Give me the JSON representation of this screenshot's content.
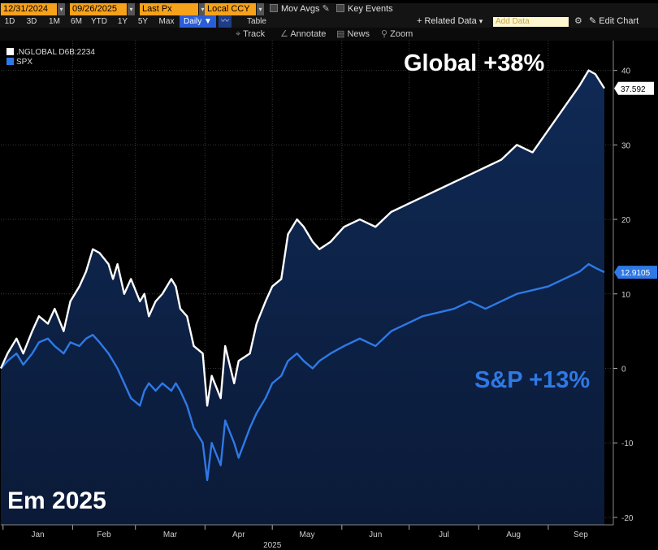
{
  "toolbar": {
    "start_date": "12/31/2024",
    "end_date": "09/26/2025",
    "field": "Last Px",
    "currency": "Local CCY",
    "mov_avgs": "Mov Avgs",
    "key_events": "Key Events",
    "ranges": [
      "1D",
      "3D",
      "1M",
      "6M",
      "YTD",
      "1Y",
      "5Y",
      "Max"
    ],
    "frequency": "Daily",
    "table": "Table",
    "related_data": "Related Data",
    "add_data_placeholder": "Add Data",
    "edit_chart": "Edit Chart",
    "tools": [
      "Track",
      "Annotate",
      "News",
      "Zoom"
    ]
  },
  "legend": [
    {
      "label": ".NGLOBAL D6B:2234",
      "color": "#ffffff"
    },
    {
      "label": "SPX",
      "color": "#2f79e6"
    }
  ],
  "annotations": {
    "global": "Global +38%",
    "sp": "S&P +13%",
    "corner": "Em 2025"
  },
  "chart_data": {
    "type": "line",
    "x_axis": {
      "tick_labels": [
        "Jan",
        "Feb",
        "Mar",
        "Apr",
        "May",
        "Jun",
        "Jul",
        "Aug",
        "Sep"
      ],
      "year_label": "2025"
    },
    "ylim": [
      -21,
      44
    ],
    "y_ticks": [
      -20,
      -10,
      0,
      10,
      20,
      30,
      40
    ],
    "grid": true,
    "series": [
      {
        "name": ".NGLOBAL D6B:2234",
        "color": "#ffffff",
        "last_value_label": "37.592",
        "points": [
          [
            "2024-12-31",
            0
          ],
          [
            "2025-01-03",
            2
          ],
          [
            "2025-01-07",
            4
          ],
          [
            "2025-01-10",
            2
          ],
          [
            "2025-01-14",
            5
          ],
          [
            "2025-01-17",
            7
          ],
          [
            "2025-01-21",
            6
          ],
          [
            "2025-01-24",
            8
          ],
          [
            "2025-01-28",
            5
          ],
          [
            "2025-01-31",
            9
          ],
          [
            "2025-02-04",
            11
          ],
          [
            "2025-02-07",
            13
          ],
          [
            "2025-02-10",
            16
          ],
          [
            "2025-02-13",
            15.5
          ],
          [
            "2025-02-17",
            14
          ],
          [
            "2025-02-19",
            12
          ],
          [
            "2025-02-21",
            14
          ],
          [
            "2025-02-24",
            10
          ],
          [
            "2025-02-27",
            12
          ],
          [
            "2025-03-03",
            9
          ],
          [
            "2025-03-05",
            10
          ],
          [
            "2025-03-07",
            7
          ],
          [
            "2025-03-10",
            9
          ],
          [
            "2025-03-13",
            10
          ],
          [
            "2025-03-17",
            12
          ],
          [
            "2025-03-19",
            11
          ],
          [
            "2025-03-21",
            8
          ],
          [
            "2025-03-24",
            7
          ],
          [
            "2025-03-27",
            3
          ],
          [
            "2025-03-31",
            2
          ],
          [
            "2025-04-02",
            -5
          ],
          [
            "2025-04-04",
            -1
          ],
          [
            "2025-04-08",
            -4
          ],
          [
            "2025-04-10",
            3
          ],
          [
            "2025-04-14",
            -2
          ],
          [
            "2025-04-16",
            1
          ],
          [
            "2025-04-21",
            2
          ],
          [
            "2025-04-24",
            6
          ],
          [
            "2025-04-28",
            9
          ],
          [
            "2025-05-01",
            11
          ],
          [
            "2025-05-05",
            12
          ],
          [
            "2025-05-08",
            18
          ],
          [
            "2025-05-12",
            20
          ],
          [
            "2025-05-15",
            19
          ],
          [
            "2025-05-19",
            17
          ],
          [
            "2025-05-22",
            16
          ],
          [
            "2025-05-27",
            17
          ],
          [
            "2025-06-02",
            19
          ],
          [
            "2025-06-09",
            20
          ],
          [
            "2025-06-16",
            19
          ],
          [
            "2025-06-23",
            21
          ],
          [
            "2025-06-30",
            22
          ],
          [
            "2025-07-07",
            23
          ],
          [
            "2025-07-14",
            24
          ],
          [
            "2025-07-21",
            25
          ],
          [
            "2025-07-28",
            26
          ],
          [
            "2025-08-04",
            27
          ],
          [
            "2025-08-11",
            28
          ],
          [
            "2025-08-18",
            30
          ],
          [
            "2025-08-25",
            29
          ],
          [
            "2025-09-01",
            32
          ],
          [
            "2025-09-08",
            35
          ],
          [
            "2025-09-15",
            38
          ],
          [
            "2025-09-19",
            40
          ],
          [
            "2025-09-22",
            39.5
          ],
          [
            "2025-09-26",
            37.592
          ]
        ]
      },
      {
        "name": "SPX",
        "color": "#2f79e6",
        "last_value_label": "12.9105",
        "points": [
          [
            "2024-12-31",
            0
          ],
          [
            "2025-01-03",
            1
          ],
          [
            "2025-01-07",
            2
          ],
          [
            "2025-01-10",
            0.5
          ],
          [
            "2025-01-14",
            2
          ],
          [
            "2025-01-17",
            3.5
          ],
          [
            "2025-01-21",
            4
          ],
          [
            "2025-01-24",
            3
          ],
          [
            "2025-01-28",
            2
          ],
          [
            "2025-01-31",
            3.5
          ],
          [
            "2025-02-04",
            3
          ],
          [
            "2025-02-07",
            4
          ],
          [
            "2025-02-10",
            4.5
          ],
          [
            "2025-02-13",
            3.5
          ],
          [
            "2025-02-17",
            2
          ],
          [
            "2025-02-19",
            1
          ],
          [
            "2025-02-21",
            0
          ],
          [
            "2025-02-24",
            -2
          ],
          [
            "2025-02-27",
            -4
          ],
          [
            "2025-03-03",
            -5
          ],
          [
            "2025-03-05",
            -3
          ],
          [
            "2025-03-07",
            -2
          ],
          [
            "2025-03-10",
            -3
          ],
          [
            "2025-03-13",
            -2
          ],
          [
            "2025-03-17",
            -3
          ],
          [
            "2025-03-19",
            -2
          ],
          [
            "2025-03-21",
            -3
          ],
          [
            "2025-03-24",
            -5
          ],
          [
            "2025-03-27",
            -8
          ],
          [
            "2025-03-31",
            -10
          ],
          [
            "2025-04-02",
            -15
          ],
          [
            "2025-04-04",
            -10
          ],
          [
            "2025-04-08",
            -13
          ],
          [
            "2025-04-10",
            -7
          ],
          [
            "2025-04-14",
            -10
          ],
          [
            "2025-04-16",
            -12
          ],
          [
            "2025-04-21",
            -8
          ],
          [
            "2025-04-24",
            -6
          ],
          [
            "2025-04-28",
            -4
          ],
          [
            "2025-05-01",
            -2
          ],
          [
            "2025-05-05",
            -1
          ],
          [
            "2025-05-08",
            1
          ],
          [
            "2025-05-12",
            2
          ],
          [
            "2025-05-15",
            1
          ],
          [
            "2025-05-19",
            0
          ],
          [
            "2025-05-22",
            1
          ],
          [
            "2025-05-27",
            2
          ],
          [
            "2025-06-02",
            3
          ],
          [
            "2025-06-09",
            4
          ],
          [
            "2025-06-16",
            3
          ],
          [
            "2025-06-23",
            5
          ],
          [
            "2025-06-30",
            6
          ],
          [
            "2025-07-07",
            7
          ],
          [
            "2025-07-14",
            7.5
          ],
          [
            "2025-07-21",
            8
          ],
          [
            "2025-07-28",
            9
          ],
          [
            "2025-08-04",
            8
          ],
          [
            "2025-08-11",
            9
          ],
          [
            "2025-08-18",
            10
          ],
          [
            "2025-08-25",
            10.5
          ],
          [
            "2025-09-01",
            11
          ],
          [
            "2025-09-08",
            12
          ],
          [
            "2025-09-15",
            13
          ],
          [
            "2025-09-19",
            14
          ],
          [
            "2025-09-22",
            13.5
          ],
          [
            "2025-09-26",
            12.9105
          ]
        ]
      }
    ]
  }
}
